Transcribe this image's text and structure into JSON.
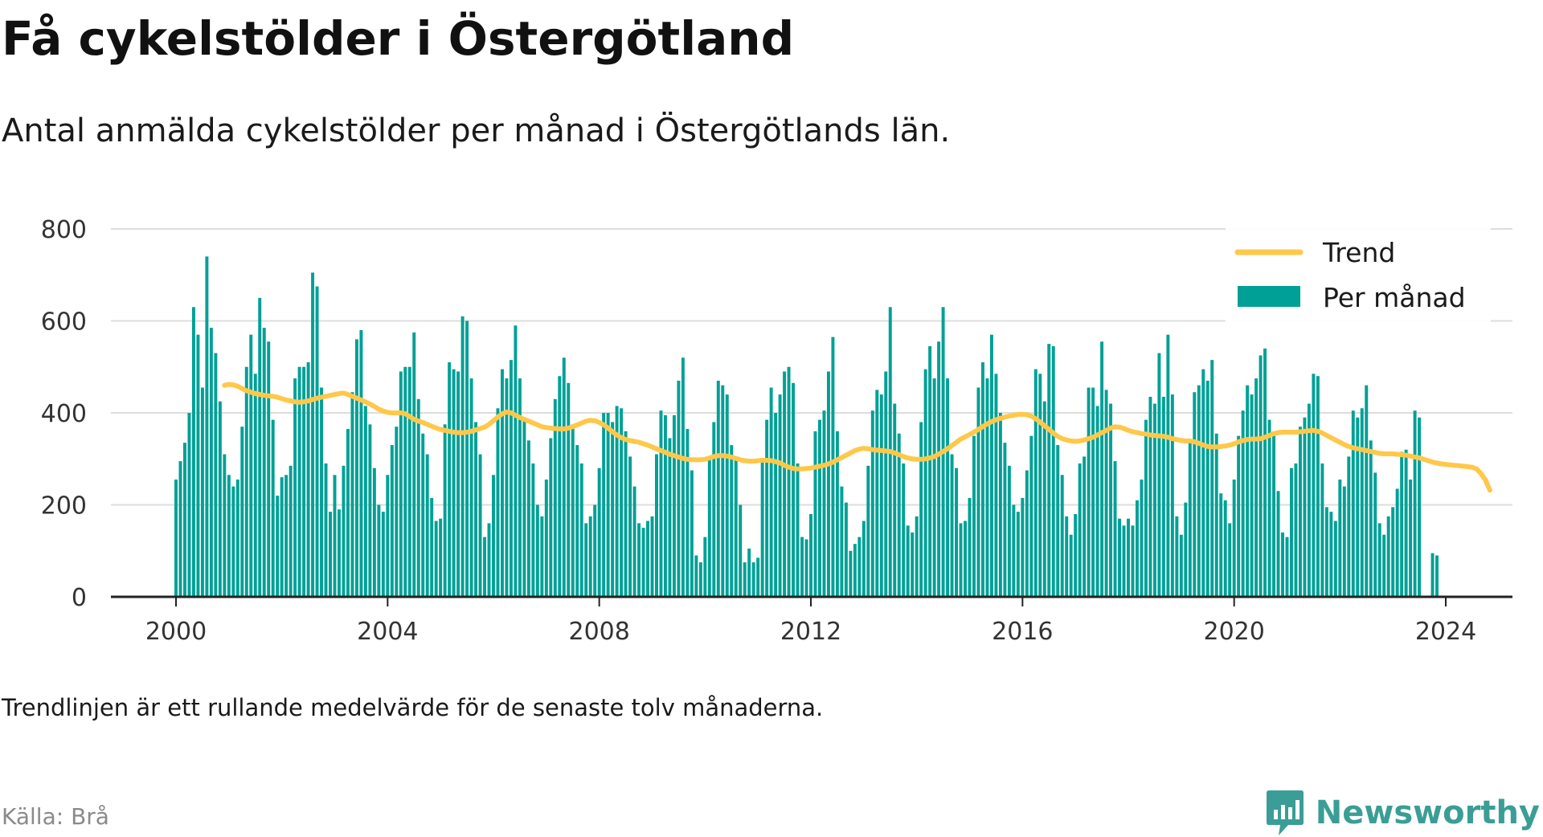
{
  "header": {
    "title": "Få cykelstölder i Östergötland",
    "subtitle": "Antal anmälda cykelstölder per månad i Östergötlands län."
  },
  "footer": {
    "note": "Trendlinjen är ett rullande medelvärde för de senaste tolv månaderna.",
    "source": "Källa: Brå",
    "brand": "Newsworthy"
  },
  "colors": {
    "bars": "#00a096",
    "trend": "#ffc84a",
    "grid": "#dddddd",
    "axis": "#222222",
    "brand": "#3a9e96"
  },
  "chart_data": {
    "type": "bar",
    "x_unit": "month",
    "start": "2000-01",
    "xlim": [
      2000,
      2024
    ],
    "ylim": [
      0,
      800
    ],
    "x_ticks": [
      2000,
      2004,
      2008,
      2012,
      2016,
      2020,
      2024
    ],
    "y_ticks": [
      0,
      200,
      400,
      600,
      800
    ],
    "grid": true,
    "legend_position": "top-right",
    "series": [
      {
        "name": "Per månad",
        "kind": "bar",
        "values": [
          255,
          295,
          335,
          400,
          630,
          570,
          455,
          740,
          585,
          530,
          425,
          310,
          265,
          240,
          255,
          370,
          500,
          570,
          485,
          650,
          585,
          555,
          385,
          220,
          260,
          265,
          285,
          475,
          500,
          500,
          510,
          705,
          675,
          455,
          290,
          185,
          265,
          190,
          285,
          365,
          445,
          560,
          580,
          415,
          375,
          280,
          200,
          185,
          265,
          330,
          370,
          490,
          500,
          500,
          575,
          430,
          355,
          310,
          215,
          165,
          170,
          375,
          510,
          495,
          490,
          610,
          600,
          475,
          380,
          310,
          130,
          160,
          265,
          410,
          495,
          475,
          515,
          590,
          475,
          390,
          340,
          290,
          200,
          175,
          255,
          345,
          430,
          480,
          520,
          465,
          375,
          330,
          290,
          160,
          175,
          200,
          280,
          400,
          400,
          380,
          415,
          410,
          360,
          305,
          240,
          160,
          150,
          165,
          175,
          310,
          405,
          395,
          345,
          395,
          470,
          520,
          365,
          275,
          90,
          75,
          130,
          300,
          380,
          470,
          460,
          440,
          330,
          305,
          200,
          75,
          105,
          75,
          85,
          295,
          385,
          455,
          400,
          440,
          490,
          500,
          465,
          290,
          130,
          125,
          180,
          360,
          385,
          405,
          490,
          565,
          360,
          240,
          205,
          100,
          115,
          130,
          165,
          285,
          405,
          450,
          440,
          490,
          630,
          420,
          355,
          290,
          155,
          140,
          175,
          380,
          495,
          545,
          475,
          555,
          630,
          475,
          310,
          280,
          160,
          165,
          215,
          350,
          455,
          510,
          475,
          570,
          485,
          400,
          335,
          285,
          200,
          185,
          215,
          275,
          350,
          495,
          485,
          425,
          550,
          545,
          330,
          265,
          175,
          135,
          180,
          290,
          305,
          455,
          455,
          415,
          555,
          450,
          420,
          295,
          170,
          155,
          170,
          155,
          210,
          255,
          385,
          435,
          420,
          530,
          435,
          570,
          440,
          175,
          135,
          205,
          335,
          445,
          460,
          495,
          470,
          515,
          355,
          225,
          210,
          160,
          255,
          350,
          405,
          460,
          440,
          475,
          525,
          540,
          385,
          350,
          230,
          140,
          130,
          280,
          290,
          370,
          390,
          420,
          485,
          480,
          290,
          195,
          185,
          165,
          255,
          240,
          305,
          405,
          390,
          410,
          460,
          340,
          270,
          160,
          135,
          175,
          195,
          235,
          315,
          320,
          255,
          405,
          390,
          0,
          0,
          95,
          90
        ]
      },
      {
        "name": "Trend",
        "kind": "line",
        "start": "2000-12",
        "values": [
          460,
          462,
          461,
          458,
          453,
          448,
          445,
          442,
          440,
          438,
          437,
          436,
          434,
          431,
          428,
          426,
          424,
          423,
          424,
          426,
          429,
          432,
          434,
          436,
          438,
          440,
          442,
          443,
          440,
          436,
          432,
          428,
          424,
          419,
          414,
          408,
          404,
          401,
          400,
          400,
          400,
          398,
          392,
          386,
          382,
          379,
          375,
          371,
          367,
          364,
          362,
          360,
          358,
          357,
          357,
          358,
          360,
          363,
          366,
          369,
          375,
          383,
          391,
          398,
          402,
          400,
          395,
          390,
          386,
          382,
          378,
          374,
          370,
          368,
          367,
          366,
          365,
          365,
          367,
          370,
          374,
          378,
          382,
          384,
          383,
          379,
          374,
          367,
          359,
          352,
          346,
          342,
          340,
          338,
          336,
          333,
          330,
          326,
          322,
          318,
          314,
          310,
          307,
          304,
          301,
          299,
          298,
          298,
          298,
          299,
          302,
          305,
          307,
          307,
          306,
          304,
          301,
          298,
          296,
          295,
          295,
          296,
          297,
          297,
          296,
          294,
          291,
          286,
          282,
          279,
          278,
          278,
          279,
          280,
          282,
          284,
          286,
          289,
          293,
          298,
          303,
          308,
          313,
          318,
          321,
          323,
          322,
          320,
          319,
          318,
          317,
          316,
          313,
          309,
          305,
          302,
          300,
          299,
          299,
          300,
          302,
          305,
          310,
          316,
          322,
          329,
          336,
          343,
          348,
          353,
          358,
          364,
          370,
          376,
          381,
          385,
          388,
          391,
          393,
          395,
          397,
          397,
          396,
          393,
          387,
          380,
          372,
          364,
          356,
          349,
          344,
          341,
          339,
          338,
          339,
          341,
          344,
          347,
          352,
          357,
          362,
          367,
          370,
          369,
          366,
          362,
          359,
          357,
          355,
          354,
          352,
          351,
          350,
          349,
          347,
          344,
          342,
          340,
          339,
          339,
          337,
          334,
          330,
          327,
          326,
          326,
          327,
          328,
          330,
          333,
          337,
          340,
          342,
          343,
          343,
          344,
          347,
          351,
          355,
          357,
          358,
          358,
          358,
          358,
          359,
          360,
          361,
          362,
          360,
          356,
          351,
          346,
          341,
          336,
          331,
          327,
          324,
          322,
          320,
          318,
          316,
          314,
          312,
          311,
          311,
          311,
          310,
          309,
          308,
          306,
          304,
          302,
          299,
          296,
          293,
          291,
          289,
          288,
          287,
          286,
          285,
          284,
          283,
          282,
          278,
          268,
          254,
          232
        ]
      }
    ]
  }
}
